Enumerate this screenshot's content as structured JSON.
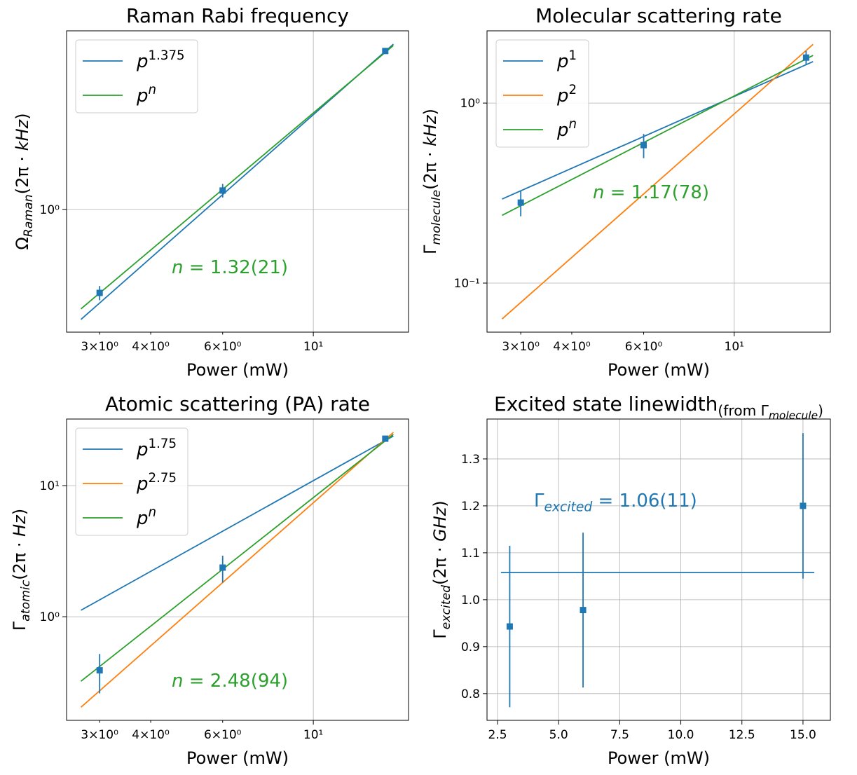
{
  "chart_data": [
    {
      "type": "errorbar",
      "title": [
        {
          "text": "Raman Rabi frequency"
        }
      ],
      "xlabel": [
        {
          "text": "Power (mW)"
        }
      ],
      "ylabel": [
        {
          "text": "Ω"
        },
        {
          "text": "Raman",
          "shift": "sub",
          "italic": true
        },
        {
          "text": "(2π · "
        },
        {
          "text": "kHz",
          "italic": true
        },
        {
          "text": ")"
        }
      ],
      "xscale": "log",
      "yscale": "log",
      "xlim": [
        2.49,
        17.1
      ],
      "ylim": [
        0.34,
        4.8
      ],
      "xticks": [
        {
          "value": 10,
          "label": "10¹"
        }
      ],
      "xminorticks": [
        {
          "value": 3,
          "label": "3×10⁰"
        },
        {
          "value": 4,
          "label": "4×10⁰"
        },
        {
          "value": 6,
          "label": "6×10⁰"
        }
      ],
      "yticks": [
        {
          "value": 1,
          "label": "10⁰"
        }
      ],
      "grid": true,
      "legend": "upper left",
      "annotation": [
        {
          "text": "n",
          "italic": true
        },
        {
          "text": " = 1.32(21)"
        }
      ],
      "annotation_color": "#2ca02c",
      "points": {
        "color": "#1f77b4",
        "x": [
          3,
          6,
          15
        ],
        "values": [
          0.48,
          1.18,
          4.02
        ],
        "yerr": [
          0.03,
          0.07,
          0.05
        ]
      },
      "series": [
        {
          "name": [
            {
              "text": "p",
              "italic": true
            },
            {
              "text": "1.375",
              "shift": "sup"
            }
          ],
          "color": "#1f77b4",
          "x": [
            2.7,
            15.7
          ],
          "values": [
            0.38,
            4.27
          ]
        },
        {
          "name": [
            {
              "text": "p",
              "italic": true
            },
            {
              "text": "n",
              "shift": "sup",
              "italic": true
            }
          ],
          "color": "#2ca02c",
          "x": [
            2.7,
            15.7
          ],
          "values": [
            0.417,
            4.22
          ]
        }
      ]
    },
    {
      "type": "errorbar",
      "title": [
        {
          "text": "Molecular scattering rate"
        }
      ],
      "xlabel": [
        {
          "text": "Power (mW)"
        }
      ],
      "ylabel": [
        {
          "text": "Γ"
        },
        {
          "text": "molecule",
          "shift": "sub",
          "italic": true
        },
        {
          "text": "(2π · "
        },
        {
          "text": "kHz",
          "italic": true
        },
        {
          "text": ")"
        }
      ],
      "xscale": "log",
      "yscale": "log",
      "xlim": [
        2.48,
        17.2
      ],
      "ylim": [
        0.0534,
        2.52
      ],
      "xticks": [
        {
          "value": 10,
          "label": "10¹"
        }
      ],
      "xminorticks": [
        {
          "value": 3,
          "label": "3×10⁰"
        },
        {
          "value": 4,
          "label": "4×10⁰"
        },
        {
          "value": 6,
          "label": "6×10⁰"
        }
      ],
      "yticks": [
        {
          "value": 1,
          "label": "10⁰"
        },
        {
          "value": 0.1,
          "label": "10⁻¹"
        }
      ],
      "grid": true,
      "legend": "upper left",
      "annotation": [
        {
          "text": "n",
          "italic": true
        },
        {
          "text": " = 1.17(78)"
        }
      ],
      "annotation_color": "#2ca02c",
      "points": {
        "color": "#1f77b4",
        "x": [
          3,
          6,
          15
        ],
        "values": [
          0.28,
          0.584,
          1.79
        ],
        "yerr": [
          0.045,
          0.09,
          0.16
        ]
      },
      "series": [
        {
          "name": [
            {
              "text": "p",
              "italic": true
            },
            {
              "text": "1",
              "shift": "sup"
            }
          ],
          "color": "#1f77b4",
          "x": [
            2.7,
            15.6
          ],
          "values": [
            0.293,
            1.7
          ]
        },
        {
          "name": [
            {
              "text": "p",
              "italic": true
            },
            {
              "text": "2",
              "shift": "sup"
            }
          ],
          "color": "#ff7f0e",
          "x": [
            2.7,
            15.6
          ],
          "values": [
            0.0632,
            2.12
          ]
        },
        {
          "name": [
            {
              "text": "p",
              "italic": true
            },
            {
              "text": "n",
              "shift": "sup",
              "italic": true
            }
          ],
          "color": "#2ca02c",
          "x": [
            2.7,
            15.6
          ],
          "values": [
            0.238,
            1.84
          ]
        }
      ]
    },
    {
      "type": "errorbar",
      "title": [
        {
          "text": "Atomic scattering (PA) rate"
        }
      ],
      "xlabel": [
        {
          "text": "Power (mW)"
        }
      ],
      "ylabel": [
        {
          "text": "Γ"
        },
        {
          "text": "atomic",
          "shift": "sub",
          "italic": true
        },
        {
          "text": "(2π · "
        },
        {
          "text": "Hz",
          "italic": true
        },
        {
          "text": ")"
        }
      ],
      "xscale": "log",
      "yscale": "log",
      "xlim": [
        2.49,
        17.1
      ],
      "ylim": [
        0.162,
        32.2
      ],
      "xticks": [
        {
          "value": 10,
          "label": "10¹"
        }
      ],
      "xminorticks": [
        {
          "value": 3,
          "label": "3×10⁰"
        },
        {
          "value": 4,
          "label": "4×10⁰"
        },
        {
          "value": 6,
          "label": "6×10⁰"
        }
      ],
      "yticks": [
        {
          "value": 10,
          "label": "10¹"
        },
        {
          "value": 1,
          "label": "10⁰"
        }
      ],
      "grid": true,
      "legend": "upper left",
      "annotation": [
        {
          "text": "n",
          "italic": true
        },
        {
          "text": " = 2.48(94)"
        }
      ],
      "annotation_color": "#2ca02c",
      "points": {
        "color": "#1f77b4",
        "x": [
          3,
          6,
          15
        ],
        "values": [
          0.39,
          2.37,
          22.8
        ],
        "yerr": [
          0.13,
          0.55,
          0.5
        ]
      },
      "series": [
        {
          "name": [
            {
              "text": "p",
              "italic": true
            },
            {
              "text": "1.75",
              "shift": "sup"
            }
          ],
          "color": "#1f77b4",
          "x": [
            2.7,
            15.7
          ],
          "values": [
            1.12,
            23.9
          ]
        },
        {
          "name": [
            {
              "text": "p",
              "italic": true
            },
            {
              "text": "2.75",
              "shift": "sup"
            }
          ],
          "color": "#ff7f0e",
          "x": [
            2.7,
            15.7
          ],
          "values": [
            0.204,
            25.5
          ]
        },
        {
          "name": [
            {
              "text": "p",
              "italic": true
            },
            {
              "text": "n",
              "shift": "sup",
              "italic": true
            }
          ],
          "color": "#2ca02c",
          "x": [
            2.7,
            15.7
          ],
          "values": [
            0.322,
            24.6
          ]
        }
      ]
    },
    {
      "type": "errorbar",
      "title": [
        {
          "text": "Excited state linewidth"
        },
        {
          "text": "(from Γ",
          "shift": "sub"
        },
        {
          "text": "molecule",
          "shift": "subsub",
          "italic": true
        },
        {
          "text": ")",
          "shift": "sub"
        }
      ],
      "xlabel": [
        {
          "text": "Power (mW)"
        }
      ],
      "ylabel": [
        {
          "text": "Γ"
        },
        {
          "text": "excited",
          "shift": "sub",
          "italic": true
        },
        {
          "text": "(2π · "
        },
        {
          "text": "GHz",
          "italic": true
        },
        {
          "text": ")"
        }
      ],
      "xscale": "linear",
      "yscale": "linear",
      "xlim": [
        2.07,
        16.12
      ],
      "ylim": [
        0.743,
        1.385
      ],
      "xticks": [
        2.5,
        {
          "value": 5,
          "label": "5.0"
        },
        7.5,
        {
          "value": 10,
          "label": "10.0"
        },
        12.5,
        {
          "value": 15,
          "label": "15.0"
        }
      ],
      "yticks": [
        0.8,
        0.9,
        {
          "value": 1,
          "label": "1.0"
        },
        1.1,
        1.2,
        1.3
      ],
      "grid": true,
      "annotation": [
        {
          "text": "Γ"
        },
        {
          "text": "excited",
          "shift": "sub",
          "italic": true
        },
        {
          "text": " = 1.06(11)"
        }
      ],
      "annotation_color": "#1f77b4",
      "points": {
        "color": "#1f77b4",
        "x": [
          3,
          6,
          15
        ],
        "values": [
          0.943,
          0.978,
          1.2
        ],
        "yerr": [
          0.172,
          0.165,
          0.155
        ]
      },
      "series": [
        {
          "color": "#1f77b4",
          "x": [
            2.64,
            15.46
          ],
          "values": [
            1.058,
            1.058
          ]
        }
      ]
    }
  ]
}
